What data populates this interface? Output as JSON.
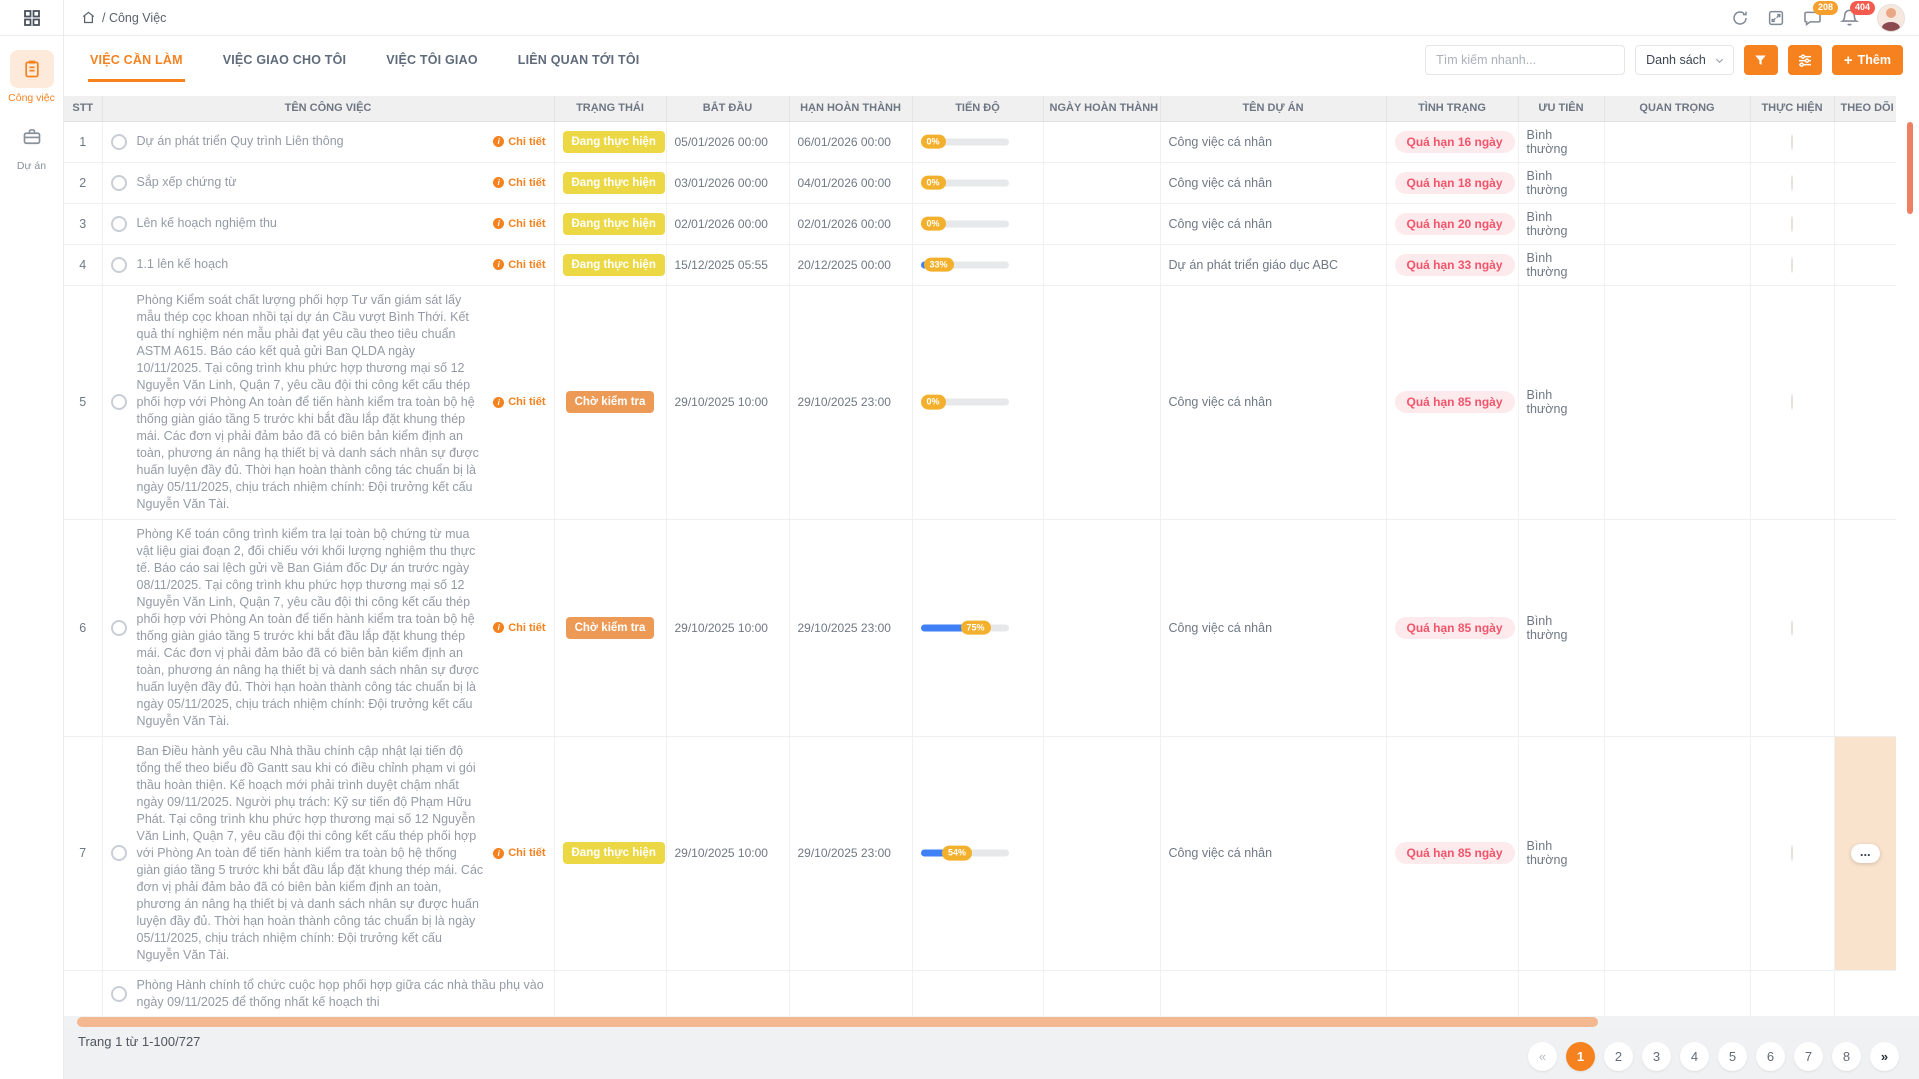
{
  "app": {
    "breadcrumb": "/ Công Việc"
  },
  "topbar": {
    "message_badge": "208",
    "notification_badge": "404"
  },
  "sidebar": {
    "items": [
      {
        "label": "Công việc"
      },
      {
        "label": "Dự án"
      }
    ]
  },
  "tabs": [
    {
      "label": "VIỆC CẦN LÀM"
    },
    {
      "label": "VIỆC GIAO CHO TÔI"
    },
    {
      "label": "VIỆC TÔI GIAO"
    },
    {
      "label": "LIÊN QUAN TỚI TÔI"
    }
  ],
  "toolbar": {
    "search_placeholder": "Tìm kiếm nhanh...",
    "view_mode": "Danh sách",
    "add_label": "Thêm"
  },
  "table": {
    "headers": [
      "STT",
      "TÊN CÔNG VIỆC",
      "TRẠNG THÁI",
      "BẮT ĐẦU",
      "HẠN HOÀN THÀNH",
      "TIẾN ĐỘ",
      "NGÀY HOÀN THÀNH",
      "TÊN DỰ ÁN",
      "TÌNH TRẠNG",
      "ƯU TIÊN",
      "QUAN TRỌNG",
      "THỰC HIỆN",
      "THEO DÕI"
    ],
    "detail_label": "Chi tiết",
    "actions_label": "...",
    "rows": [
      {
        "stt": "1",
        "name": "Dự án phát triển Quy trình Liên thông",
        "detail": true,
        "status": "Đang thực hiện",
        "status_type": "doing",
        "start": "05/01/2026 00:00",
        "due": "06/01/2026 00:00",
        "progress": 0,
        "progress_label": "0%",
        "done": "",
        "project": "Công việc cá nhân",
        "condition": "Quá hạn 16 ngày",
        "priority": "Bình thường",
        "avatar": true,
        "watch_highlight": false
      },
      {
        "stt": "2",
        "name": "Sắp xếp chứng từ",
        "detail": true,
        "status": "Đang thực hiện",
        "status_type": "doing",
        "start": "03/01/2026 00:00",
        "due": "04/01/2026 00:00",
        "progress": 0,
        "progress_label": "0%",
        "done": "",
        "project": "Công việc cá nhân",
        "condition": "Quá hạn 18 ngày",
        "priority": "Bình thường",
        "avatar": true,
        "watch_highlight": false
      },
      {
        "stt": "3",
        "name": "Lên kế hoạch nghiệm thu",
        "detail": true,
        "status": "Đang thực hiện",
        "status_type": "doing",
        "start": "02/01/2026 00:00",
        "due": "02/01/2026 00:00",
        "progress": 0,
        "progress_label": "0%",
        "done": "",
        "project": "Công việc cá nhân",
        "condition": "Quá hạn 20 ngày",
        "priority": "Bình thường",
        "avatar": true,
        "watch_highlight": false
      },
      {
        "stt": "4",
        "name": "1.1 lên kế hoạch",
        "detail": true,
        "status": "Đang thực hiện",
        "status_type": "doing",
        "start": "15/12/2025 05:55",
        "due": "20/12/2025 00:00",
        "progress": 33,
        "progress_label": "33%",
        "done": "",
        "project": "Dự án phát triển giáo dục ABC",
        "condition": "Quá hạn 33 ngày",
        "priority": "Bình thường",
        "avatar": true,
        "watch_highlight": false
      },
      {
        "stt": "5",
        "name": "Phòng Kiểm soát chất lượng phối hợp Tư vấn giám sát lấy mẫu thép cọc khoan nhồi tại dự án Cầu vượt Bình Thới. Kết quả thí nghiệm nén mẫu phải đạt yêu cầu theo tiêu chuẩn ASTM A615. Báo cáo kết quả gửi Ban QLDA ngày 10/11/2025. Tại công trình khu phức hợp thương mại số 12 Nguyễn Văn Linh, Quận 7, yêu cầu đội thi công kết cấu thép phối hợp với Phòng An toàn để tiến hành kiểm tra toàn bộ hệ thống giàn giáo tầng 5 trước khi bắt đầu lắp đặt khung thép mái. Các đơn vị phải đảm bảo đã có biên bản kiểm định an toàn, phương án nâng hạ thiết bị và danh sách nhân sự được huấn luyện đầy đủ. Thời hạn hoàn thành công tác chuẩn bị là ngày 05/11/2025, chịu trách nhiệm chính: Đội trưởng kết cấu Nguyễn Văn Tài.",
        "detail": true,
        "status": "Chờ kiểm tra",
        "status_type": "review",
        "start": "29/10/2025 10:00",
        "due": "29/10/2025 23:00",
        "progress": 0,
        "progress_label": "0%",
        "done": "",
        "project": "Công việc cá nhân",
        "condition": "Quá hạn 85 ngày",
        "priority": "Bình thường",
        "avatar": true,
        "watch_highlight": false
      },
      {
        "stt": "6",
        "name": "Phòng Kế toán công trình kiểm tra lại toàn bộ chứng từ mua vật liệu giai đoạn 2, đối chiếu với khối lượng nghiệm thu thực tế. Báo cáo sai lệch gửi về Ban Giám đốc Dự án trước ngày 08/11/2025. Tại công trình khu phức hợp thương mại số 12 Nguyễn Văn Linh, Quận 7, yêu cầu đội thi công kết cấu thép phối hợp với Phòng An toàn để tiến hành kiểm tra toàn bộ hệ thống giàn giáo tầng 5 trước khi bắt đầu lắp đặt khung thép mái. Các đơn vị phải đảm bảo đã có biên bản kiểm định an toàn, phương án nâng hạ thiết bị và danh sách nhân sự được huấn luyện đầy đủ. Thời hạn hoàn thành công tác chuẩn bị là ngày 05/11/2025, chịu trách nhiệm chính: Đội trưởng kết cấu Nguyễn Văn Tài.",
        "detail": true,
        "status": "Chờ kiểm tra",
        "status_type": "review",
        "start": "29/10/2025 10:00",
        "due": "29/10/2025 23:00",
        "progress": 75,
        "progress_label": "75%",
        "done": "",
        "project": "Công việc cá nhân",
        "condition": "Quá hạn 85 ngày",
        "priority": "Bình thường",
        "avatar": true,
        "watch_highlight": false
      },
      {
        "stt": "7",
        "name": "Ban Điều hành yêu cầu Nhà thầu chính cập nhật lại tiến độ tổng thể theo biểu đồ Gantt sau khi có điều chỉnh phạm vi gói thầu hoàn thiện. Kế hoạch mới phải trình duyệt chậm nhất ngày 09/11/2025. Người phụ trách: Kỹ sư tiến độ Phạm Hữu Phát. Tại công trình khu phức hợp thương mại số 12 Nguyễn Văn Linh, Quận 7, yêu cầu đội thi công kết cấu thép phối hợp với Phòng An toàn để tiến hành kiểm tra toàn bộ hệ thống giàn giáo tầng 5 trước khi bắt đầu lắp đặt khung thép mái. Các đơn vị phải đảm bảo đã có biên bản kiểm định an toàn, phương án nâng hạ thiết bị và danh sách nhân sự được huấn luyện đầy đủ. Thời hạn hoàn thành công tác chuẩn bị là ngày 05/11/2025, chịu trách nhiệm chính: Đội trưởng kết cấu Nguyễn Văn Tài.",
        "detail": true,
        "status": "Đang thực hiện",
        "status_type": "doing",
        "start": "29/10/2025 10:00",
        "due": "29/10/2025 23:00",
        "progress": 54,
        "progress_label": "54%",
        "done": "",
        "project": "Công việc cá nhân",
        "condition": "Quá hạn 85 ngày",
        "priority": "Bình thường",
        "avatar": true,
        "watch_highlight": true
      },
      {
        "stt": "",
        "name": "Phòng Hành chính tổ chức cuộc họp phối hợp giữa các nhà thầu phụ vào ngày 09/11/2025 để thống nhất kế hoạch thi",
        "detail": false,
        "status": "",
        "status_type": "",
        "start": "",
        "due": "",
        "progress": null,
        "progress_label": "",
        "done": "",
        "project": "",
        "condition": "",
        "priority": "",
        "avatar": false,
        "watch_highlight": false
      }
    ]
  },
  "footer": {
    "page_info": "Trang 1 từ 1-100/727",
    "pages": [
      "«",
      "1",
      "2",
      "3",
      "4",
      "5",
      "6",
      "7",
      "8",
      "»"
    ],
    "active_page": "1"
  },
  "colors": {
    "accent": "#f5821f",
    "status_doing": "#ecd844",
    "status_review": "#ed9a57",
    "progress_fill": "#3f80f6",
    "progress_pill": "#f3b02c",
    "overdue_text": "#f2556b",
    "overdue_bg": "#fdeaec"
  }
}
